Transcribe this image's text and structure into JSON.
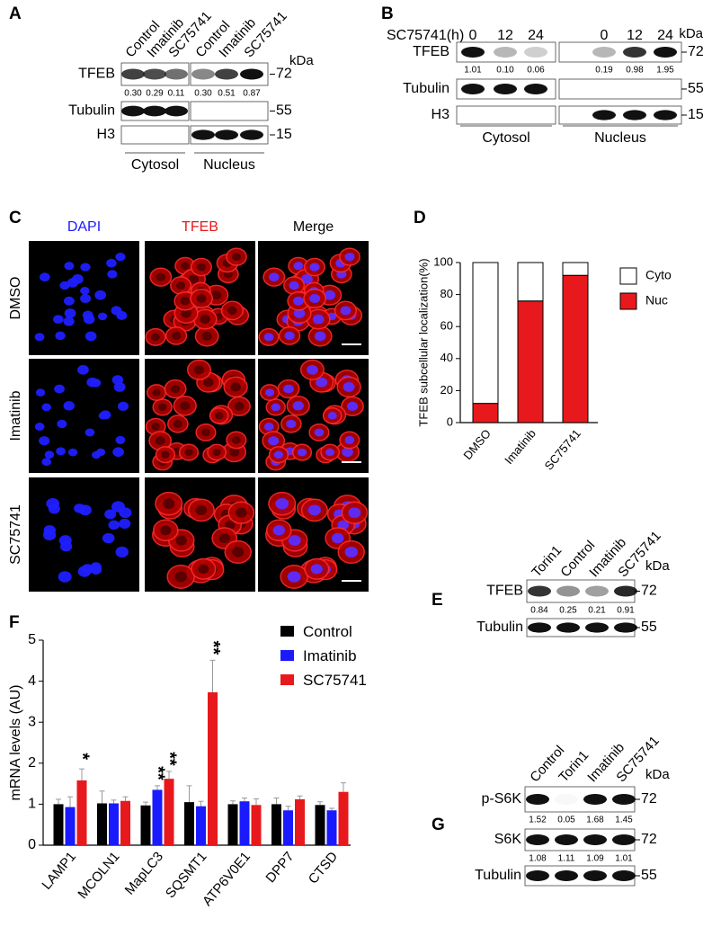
{
  "blots": [
    {
      "panel": "A",
      "unit": "kDa",
      "lanes": [
        "Control",
        "Imatinib",
        "SC75741",
        "Control",
        "Imatinib",
        "SC75741"
      ],
      "groups": [
        "Cytosol",
        "Nucleus"
      ],
      "rows": [
        {
          "name": "TFEB",
          "marker": "72",
          "quant": [
            "0.30",
            "0.29",
            "0.11",
            "0.30",
            "0.51",
            "0.87"
          ]
        },
        {
          "name": "Tubulin",
          "marker": "55"
        },
        {
          "name": "H3",
          "marker": "15"
        }
      ]
    },
    {
      "panel": "B",
      "unit": "kDa",
      "condition": "SC75741(h)",
      "lanes": [
        "0",
        "12",
        "24",
        "0",
        "12",
        "24"
      ],
      "groups": [
        "Cytosol",
        "Nucleus"
      ],
      "rows": [
        {
          "name": "TFEB",
          "marker": "72",
          "quant": [
            "1.01",
            "0.10",
            "0.06",
            "0.19",
            "0.98",
            "1.95"
          ]
        },
        {
          "name": "Tubulin",
          "marker": "55"
        },
        {
          "name": "H3",
          "marker": "15"
        }
      ]
    },
    {
      "panel": "E",
      "unit": "kDa",
      "lanes": [
        "Torin1",
        "Control",
        "Imatinib",
        "SC75741"
      ],
      "rows": [
        {
          "name": "TFEB",
          "marker": "72",
          "quant": [
            "0.84",
            "0.25",
            "0.21",
            "0.91"
          ]
        },
        {
          "name": "Tubulin",
          "marker": "55"
        }
      ]
    },
    {
      "panel": "G",
      "unit": "kDa",
      "lanes": [
        "Control",
        "Torin1",
        "Imatinib",
        "SC75741"
      ],
      "rows": [
        {
          "name": "p-S6K",
          "marker": "72",
          "quant": [
            "1.52",
            "0.05",
            "1.68",
            "1.45"
          ]
        },
        {
          "name": "S6K",
          "marker": "72",
          "quant": [
            "1.08",
            "1.11",
            "1.09",
            "1.01"
          ]
        },
        {
          "name": "Tubulin",
          "marker": "55"
        }
      ]
    }
  ],
  "micrographs": {
    "panel": "C",
    "columns": [
      "DAPI",
      "TFEB",
      "Merge"
    ],
    "rows": [
      "DMSO",
      "Imatinib",
      "SC75741"
    ]
  },
  "chart_data": [
    {
      "type": "bar",
      "panel": "D",
      "stacked": true,
      "ylabel": "TFEB subcellular localization(%)",
      "categories": [
        "DMSO",
        "Imatinib",
        "SC75741"
      ],
      "series": [
        {
          "name": "Cyto",
          "color": "#ffffff",
          "values": [
            88,
            24,
            8
          ]
        },
        {
          "name": "Nuc",
          "color": "#e8191c",
          "values": [
            12,
            76,
            92
          ]
        }
      ],
      "ylim": [
        0,
        100
      ],
      "yticks": [
        0,
        20,
        40,
        60,
        80,
        100
      ],
      "legend": "upper right"
    },
    {
      "type": "bar",
      "panel": "F",
      "ylabel": "mRNA levels (AU)",
      "categories": [
        "LAMP1",
        "MCOLN1",
        "MapLC3",
        "SQSMT1",
        "ATP6V0E1",
        "DPP7",
        "CTSD"
      ],
      "series": [
        {
          "name": "Control",
          "color": "#000000",
          "values": [
            1.0,
            1.02,
            0.97,
            1.05,
            1.0,
            1.0,
            0.98
          ],
          "errors": [
            0.12,
            0.3,
            0.08,
            0.4,
            0.08,
            0.15,
            0.08
          ]
        },
        {
          "name": "Imatinib",
          "color": "#1a1aff",
          "values": [
            0.93,
            1.02,
            1.35,
            0.95,
            1.07,
            0.85,
            0.85
          ],
          "errors": [
            0.25,
            0.08,
            0.1,
            0.12,
            0.08,
            0.1,
            0.05
          ]
        },
        {
          "name": "SC75741",
          "color": "#e8191c",
          "values": [
            1.58,
            1.08,
            1.62,
            3.73,
            0.98,
            1.12,
            1.3
          ],
          "errors": [
            0.28,
            0.1,
            0.18,
            0.78,
            0.15,
            0.08,
            0.22
          ]
        }
      ],
      "ylim": [
        0,
        5
      ],
      "yticks": [
        0,
        1,
        2,
        3,
        4,
        5
      ],
      "legend": "upper right",
      "annotations": [
        {
          "text": "*",
          "series": 2,
          "category": 0
        },
        {
          "text": "**",
          "series": 1,
          "category": 2
        },
        {
          "text": "**",
          "series": 2,
          "category": 2
        },
        {
          "text": "**",
          "series": 2,
          "category": 3
        }
      ]
    }
  ]
}
